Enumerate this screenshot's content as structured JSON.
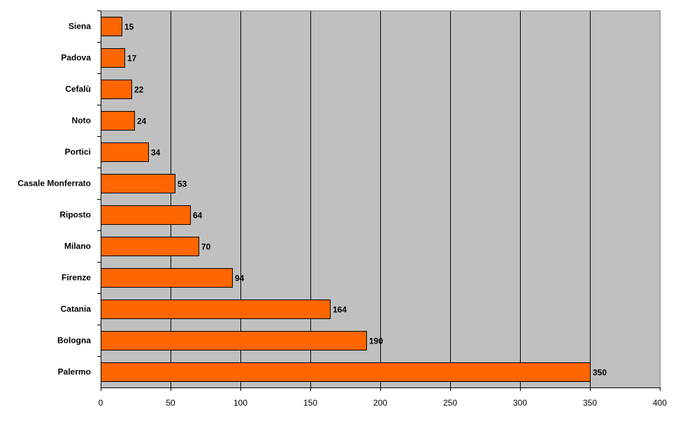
{
  "chart_data": {
    "type": "bar",
    "orientation": "horizontal",
    "title": "",
    "xlabel": "",
    "ylabel": "",
    "categories": [
      "Siena",
      "Padova",
      "Cefalù",
      "Noto",
      "Portici",
      "Casale Monferrato",
      "Riposto",
      "Milano",
      "Firenze",
      "Catania",
      "Bologna",
      "Palermo"
    ],
    "values": [
      15,
      17,
      22,
      24,
      34,
      53,
      64,
      70,
      94,
      164,
      190,
      350
    ],
    "xlim": [
      0,
      400
    ],
    "xticks": [
      "0",
      "50",
      "100",
      "150",
      "200",
      "250",
      "300",
      "350",
      "400"
    ],
    "grid": true,
    "legend": "none",
    "colors": {
      "bar": "#ff6600",
      "plot_background": "#c0c0c0",
      "gridline": "#000000"
    }
  }
}
